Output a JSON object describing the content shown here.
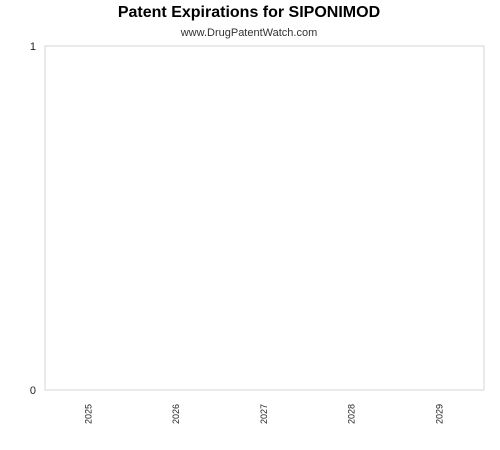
{
  "chart_data": {
    "type": "bar",
    "title": "Patent Expirations for SIPONIMOD",
    "subtitle": "www.DrugPatentWatch.com",
    "categories": [
      "2025",
      "2026",
      "2027",
      "2028",
      "2029"
    ],
    "values": [
      0,
      0,
      0,
      0,
      0
    ],
    "xlabel": "",
    "ylabel": "",
    "ylim": [
      0,
      1
    ],
    "y_ticks": [
      0,
      1
    ],
    "grid": false,
    "legend": "none",
    "colors": {
      "frame": "#d4d4d4",
      "bar": "#1f77b4",
      "text": "#222222"
    }
  }
}
